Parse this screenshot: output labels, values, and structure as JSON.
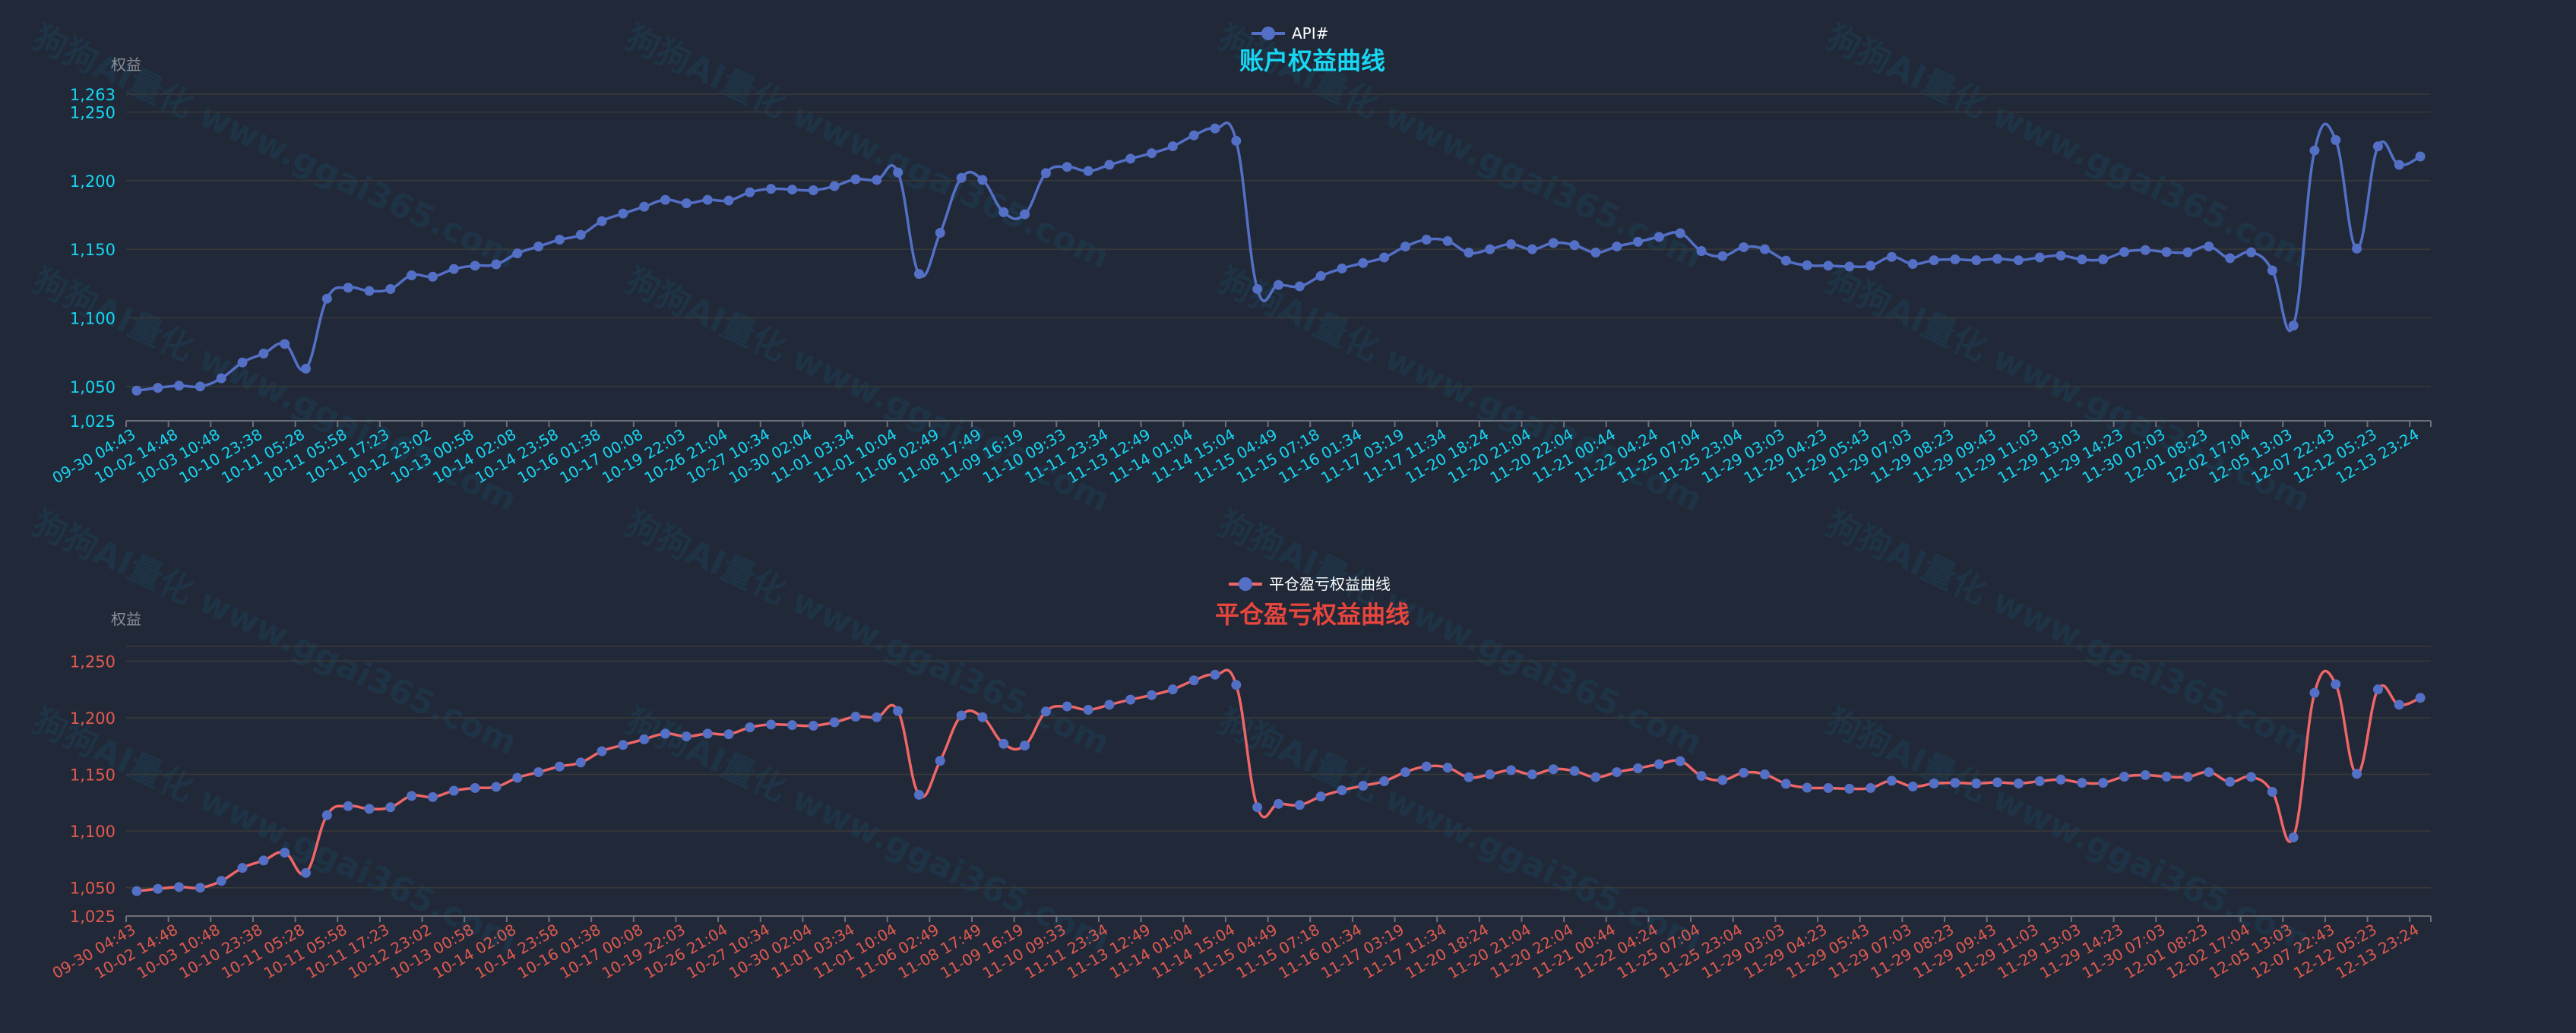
{
  "watermark": "狗狗AI量化 www.ggai365.com",
  "colors": {
    "background": "#212838",
    "top_title": "#17d6f2",
    "top_axis_labels": "#17d6f2",
    "bottom_title": "#e8453c",
    "bottom_axis_labels": "#e05a4e",
    "top_line": "#5470c6",
    "bottom_line": "#ee6666",
    "points": "#5470c6",
    "gridline": "#3a3a38",
    "axis_line": "#6e7079"
  },
  "chart_data": [
    {
      "type": "line",
      "title": "账户权益曲线",
      "legend": "API#",
      "legend_position": "top-center",
      "ylabel": "权益",
      "ylim": [
        1025,
        1263
      ],
      "y_ticks": [
        "1,025",
        "1,050",
        "1,100",
        "1,150",
        "1,200",
        "1,250",
        "1,263"
      ],
      "y_tick_values": [
        1025,
        1050,
        1100,
        1150,
        1200,
        1250,
        1263
      ],
      "grid": true,
      "smooth": true,
      "x_tick_labels": [
        "09-30 04:43",
        "10-02 14:48",
        "10-03 10:48",
        "10-10 23:38",
        "10-11 05:28",
        "10-11 05:58",
        "10-11 17:23",
        "10-12 23:02",
        "10-13 00:58",
        "10-14 02:08",
        "10-14 23:58",
        "10-16 01:38",
        "10-17 00:08",
        "10-19 22:03",
        "10-26 21:04",
        "10-27 10:34",
        "10-30 02:04",
        "11-01 03:34",
        "11-01 10:04",
        "11-06 02:49",
        "11-08 17:49",
        "11-09 16:19",
        "11-10 09:33",
        "11-11 23:34",
        "11-13 12:49",
        "11-14 01:04",
        "11-14 15:04",
        "11-15 04:49",
        "11-15 07:18",
        "11-16 01:34",
        "11-17 03:19",
        "11-17 11:34",
        "11-20 18:24",
        "11-20 21:04",
        "11-20 22:04",
        "11-21 00:44",
        "11-22 04:24",
        "11-25 07:04",
        "11-25 23:04",
        "11-29 03:03",
        "11-29 04:23",
        "11-29 05:43",
        "11-29 07:03",
        "11-29 08:23",
        "11-29 09:43",
        "11-29 11:03",
        "11-29 13:03",
        "11-29 14:23",
        "11-30 07:03",
        "12-01 08:23",
        "12-02 17:04",
        "12-05 13:03",
        "12-07 22:43",
        "12-12 05:23",
        "12-13 23:24"
      ],
      "series": [
        {
          "name": "API#",
          "values": [
            1047,
            1049,
            1050.6,
            1050,
            1056,
            1067.5,
            1074,
            1081,
            1063,
            1114,
            1122,
            1119.6,
            1121,
            1131,
            1130,
            1135.6,
            1138,
            1139,
            1147,
            1152,
            1157,
            1160.5,
            1170.5,
            1176,
            1181,
            1186,
            1183.5,
            1186,
            1185.5,
            1191.5,
            1194,
            1193.5,
            1193,
            1196,
            1201,
            1200.5,
            1206,
            1132,
            1162,
            1202,
            1200.5,
            1177,
            1175.5,
            1205.5,
            1210,
            1207,
            1211.5,
            1216,
            1220,
            1225,
            1233,
            1238,
            1229,
            1121,
            1124,
            1123,
            1130.5,
            1136,
            1140,
            1144,
            1152,
            1157,
            1156,
            1147.5,
            1150,
            1153.7,
            1150,
            1154.6,
            1153,
            1147.6,
            1152,
            1155.4,
            1159,
            1161.7,
            1148.7,
            1145,
            1151.5,
            1150,
            1141.7,
            1138.3,
            1138,
            1137.4,
            1138,
            1144.4,
            1139.3,
            1142,
            1142.6,
            1142,
            1143,
            1142,
            1144,
            1145.4,
            1142.6,
            1142.6,
            1148,
            1149.4,
            1148,
            1147.8,
            1152,
            1143.5,
            1147.8,
            1134.6,
            1094.4,
            1222,
            1229.6,
            1150.5,
            1225,
            1211.5,
            1217.6
          ]
        }
      ]
    },
    {
      "type": "line",
      "title": "平仓盈亏权益曲线",
      "legend": "平仓盈亏权益曲线",
      "legend_position": "top-center",
      "ylabel": "权益",
      "ylim": [
        1025,
        1263
      ],
      "y_ticks": [
        "1,025",
        "1,050",
        "1,100",
        "1,150",
        "1,200",
        "1,250"
      ],
      "y_tick_values": [
        1025,
        1050,
        1100,
        1150,
        1200,
        1250
      ],
      "grid": true,
      "smooth": true,
      "x_tick_labels": [
        "09-30 04:43",
        "10-02 14:48",
        "10-03 10:48",
        "10-10 23:38",
        "10-11 05:28",
        "10-11 05:58",
        "10-11 17:23",
        "10-12 23:02",
        "10-13 00:58",
        "10-14 02:08",
        "10-14 23:58",
        "10-16 01:38",
        "10-17 00:08",
        "10-19 22:03",
        "10-26 21:04",
        "10-27 10:34",
        "10-30 02:04",
        "11-01 03:34",
        "11-01 10:04",
        "11-06 02:49",
        "11-08 17:49",
        "11-09 16:19",
        "11-10 09:33",
        "11-11 23:34",
        "11-13 12:49",
        "11-14 01:04",
        "11-14 15:04",
        "11-15 04:49",
        "11-15 07:18",
        "11-16 01:34",
        "11-17 03:19",
        "11-17 11:34",
        "11-20 18:24",
        "11-20 21:04",
        "11-20 22:04",
        "11-21 00:44",
        "11-22 04:24",
        "11-25 07:04",
        "11-25 23:04",
        "11-29 03:03",
        "11-29 04:23",
        "11-29 05:43",
        "11-29 07:03",
        "11-29 08:23",
        "11-29 09:43",
        "11-29 11:03",
        "11-29 13:03",
        "11-29 14:23",
        "11-30 07:03",
        "12-01 08:23",
        "12-02 17:04",
        "12-05 13:03",
        "12-07 22:43",
        "12-12 05:23",
        "12-13 23:24"
      ],
      "series": [
        {
          "name": "平仓盈亏权益曲线",
          "values": [
            1047,
            1049,
            1050.6,
            1050,
            1056,
            1067.5,
            1074,
            1081,
            1063,
            1114,
            1122,
            1119.6,
            1121,
            1131,
            1130,
            1135.6,
            1138,
            1139,
            1147,
            1152,
            1157,
            1160.5,
            1170.5,
            1176,
            1181,
            1186,
            1183.5,
            1186,
            1185.5,
            1191.5,
            1194,
            1193.5,
            1193,
            1196,
            1201,
            1200.5,
            1206,
            1132,
            1162,
            1202,
            1200.5,
            1177,
            1175.5,
            1205.5,
            1210,
            1207,
            1211.5,
            1216,
            1220,
            1225,
            1233,
            1238,
            1229,
            1121,
            1124,
            1123,
            1130.5,
            1136,
            1140,
            1144,
            1152,
            1157,
            1156,
            1147.5,
            1150,
            1153.7,
            1150,
            1154.6,
            1153,
            1147.6,
            1152,
            1155.4,
            1159,
            1161.7,
            1148.7,
            1145,
            1151.5,
            1150,
            1141.7,
            1138.3,
            1138,
            1137.4,
            1138,
            1144.4,
            1139.3,
            1142,
            1142.6,
            1142,
            1143,
            1142,
            1144,
            1145.4,
            1142.6,
            1142.6,
            1148,
            1149.4,
            1148,
            1147.8,
            1152,
            1143.5,
            1147.8,
            1134.6,
            1094.4,
            1222,
            1229.6,
            1150.5,
            1225,
            1211.5,
            1217.6
          ]
        }
      ]
    }
  ]
}
